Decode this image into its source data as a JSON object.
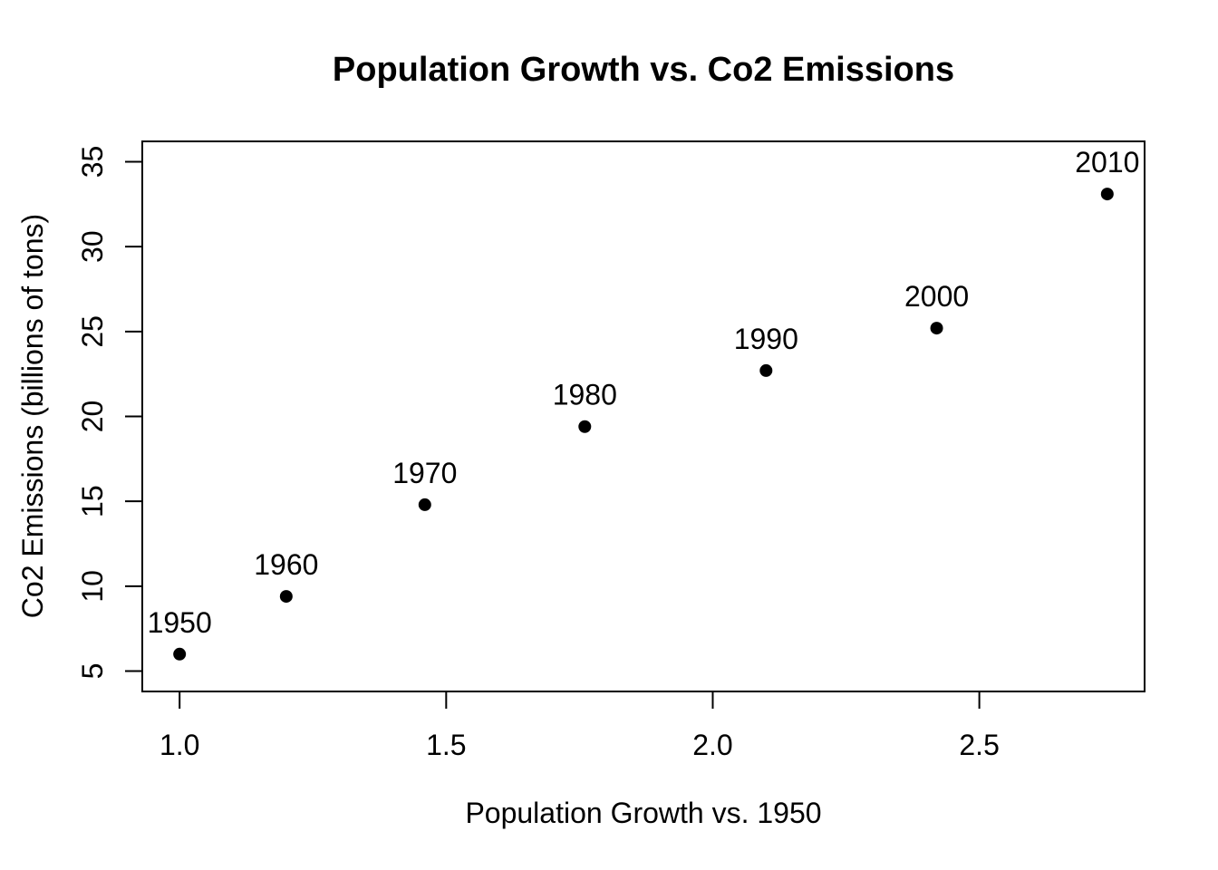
{
  "chart_data": {
    "type": "scatter",
    "title": "Population Growth vs. Co2 Emissions",
    "xlabel": "Population Growth vs. 1950",
    "ylabel": "Co2 Emissions (billions of tons)",
    "points": [
      {
        "label": "1950",
        "x": 1.0,
        "y": 6.0
      },
      {
        "label": "1960",
        "x": 1.2,
        "y": 9.4
      },
      {
        "label": "1970",
        "x": 1.46,
        "y": 14.8
      },
      {
        "label": "1980",
        "x": 1.76,
        "y": 19.4
      },
      {
        "label": "1990",
        "x": 2.1,
        "y": 22.7
      },
      {
        "label": "2000",
        "x": 2.42,
        "y": 25.2
      },
      {
        "label": "2010",
        "x": 2.74,
        "y": 33.1
      }
    ],
    "x_ticks": [
      1.0,
      1.5,
      2.0,
      2.5
    ],
    "x_tick_labels": [
      "1.0",
      "1.5",
      "2.0",
      "2.5"
    ],
    "y_ticks": [
      5,
      10,
      15,
      20,
      25,
      30,
      35
    ],
    "y_tick_labels": [
      "5",
      "10",
      "15",
      "20",
      "25",
      "30",
      "35"
    ],
    "xlim": [
      0.93,
      2.81
    ],
    "ylim": [
      3.8,
      36.2
    ],
    "grid": false,
    "legend": null,
    "marker": "filled-circle",
    "point_color": "#000000",
    "axis_color": "#000000",
    "background": "#ffffff"
  }
}
